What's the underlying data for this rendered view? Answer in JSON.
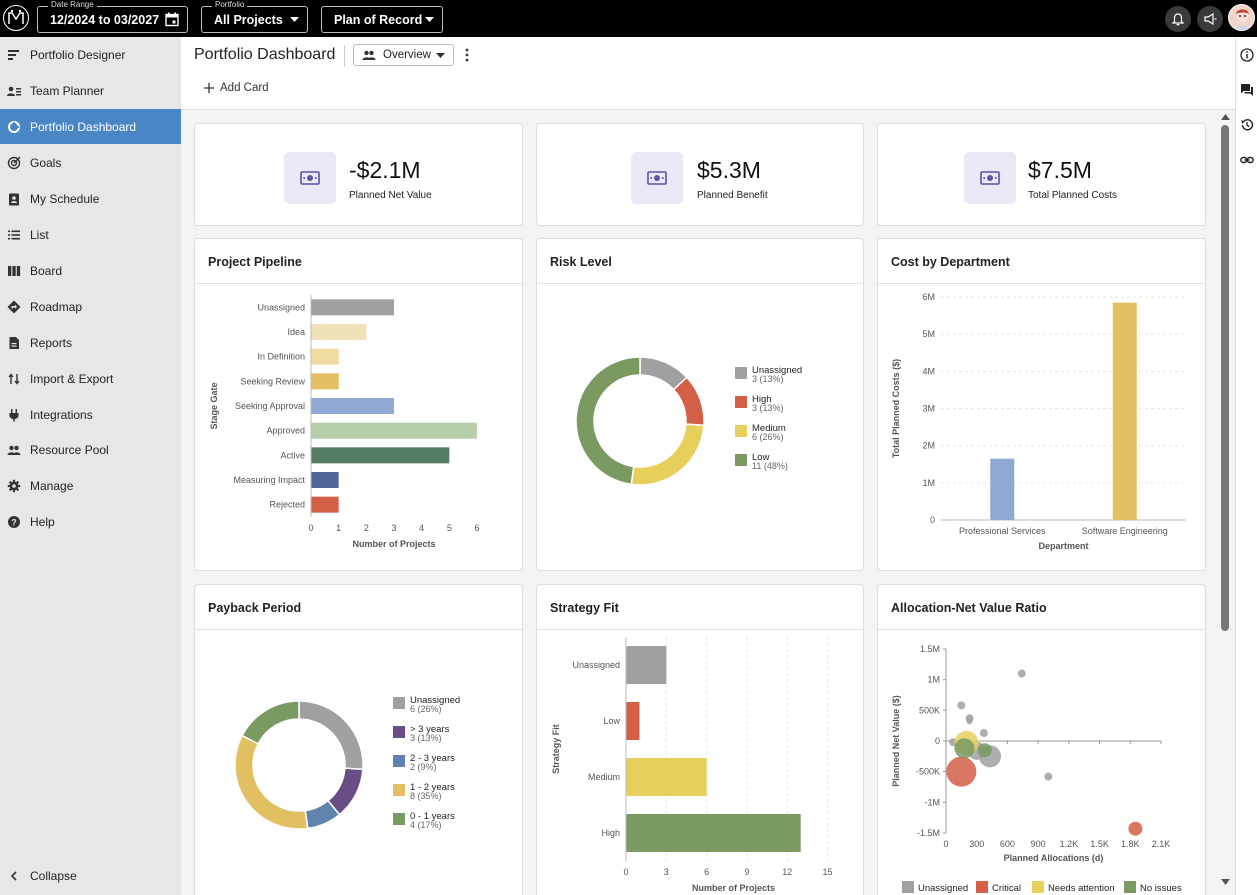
{
  "topbar": {
    "logo_text": "M",
    "date_range_label": "Date Range",
    "date_range_value": "12/2024 to 03/2027",
    "portfolio_label": "Portfolio",
    "portfolio_value": "All Projects",
    "plan_value": "Plan of Record"
  },
  "sidebar": {
    "items": [
      {
        "label": "Portfolio Designer",
        "icon": "designer-icon"
      },
      {
        "label": "Team Planner",
        "icon": "team-icon"
      },
      {
        "label": "Portfolio Dashboard",
        "icon": "dashboard-icon"
      },
      {
        "label": "Goals",
        "icon": "target-icon"
      },
      {
        "label": "My Schedule",
        "icon": "schedule-icon"
      },
      {
        "label": "List",
        "icon": "list-icon"
      },
      {
        "label": "Board",
        "icon": "board-icon"
      },
      {
        "label": "Roadmap",
        "icon": "roadmap-icon"
      },
      {
        "label": "Reports",
        "icon": "report-icon"
      },
      {
        "label": "Import & Export",
        "icon": "import-export-icon"
      },
      {
        "label": "Integrations",
        "icon": "plug-icon"
      },
      {
        "label": "Resource Pool",
        "icon": "people-icon"
      },
      {
        "label": "Manage",
        "icon": "gear-icon"
      },
      {
        "label": "Help",
        "icon": "help-icon"
      }
    ],
    "collapse_label": "Collapse"
  },
  "header": {
    "title": "Portfolio Dashboard",
    "view_label": "Overview",
    "add_card_label": "Add Card"
  },
  "colors": {
    "accent": "#4a86c5",
    "unassigned": "#a0a0a0",
    "high": "#d35f47",
    "medium": "#e6cf5a",
    "low": "#7a9a62"
  },
  "kpis": [
    {
      "value": "-$2.1M",
      "label": "Planned Net Value"
    },
    {
      "value": "$5.3M",
      "label": "Planned Benefit"
    },
    {
      "value": "$7.5M",
      "label": "Total Planned Costs"
    }
  ],
  "cards": {
    "pipeline_title": "Project Pipeline",
    "risk_title": "Risk Level",
    "cost_title": "Cost by Department",
    "payback_title": "Payback Period",
    "strategy_title": "Strategy Fit",
    "allocation_title": "Allocation-Net Value Ratio"
  },
  "chart_data": [
    {
      "id": "pipeline",
      "type": "bar",
      "orientation": "horizontal",
      "title": "Project Pipeline",
      "xlabel": "Number of Projects",
      "ylabel": "Stage Gate",
      "xlim": [
        0,
        6
      ],
      "xticks": [
        0,
        1,
        2,
        3,
        4,
        5,
        6
      ],
      "categories": [
        "Unassigned",
        "Idea",
        "In Definition",
        "Seeking Review",
        "Seeking Approval",
        "Approved",
        "Active",
        "Measuring Impact",
        "Rejected"
      ],
      "values": [
        3,
        2,
        1,
        1,
        3,
        6,
        5,
        1,
        1
      ],
      "colors": [
        "#a0a0a0",
        "#f0e2b8",
        "#f0dca2",
        "#e2bf60",
        "#8fa9d4",
        "#b6cfaa",
        "#557c66",
        "#4f6596",
        "#d35f47"
      ]
    },
    {
      "id": "risk",
      "type": "pie",
      "donut": true,
      "title": "Risk Level",
      "slices": [
        {
          "name": "Unassigned",
          "value": 3,
          "label": "3 (13%)",
          "color": "#a0a0a0"
        },
        {
          "name": "High",
          "value": 3,
          "label": "3 (13%)",
          "color": "#d35f47"
        },
        {
          "name": "Medium",
          "value": 6,
          "label": "6 (26%)",
          "color": "#e6cf5a"
        },
        {
          "name": "Low",
          "value": 11,
          "label": "11 (48%)",
          "color": "#7a9a62"
        }
      ]
    },
    {
      "id": "cost",
      "type": "bar",
      "title": "Cost by Department",
      "xlabel": "Department",
      "ylabel": "Total Planned Costs ($)",
      "ylim": [
        0,
        6000000
      ],
      "yticks": [
        0,
        1000000,
        2000000,
        3000000,
        4000000,
        5000000,
        6000000
      ],
      "ytick_labels": [
        "0",
        "1M",
        "2M",
        "3M",
        "4M",
        "5M",
        "6M"
      ],
      "categories": [
        "Professional Services",
        "Software Engineering"
      ],
      "values": [
        1650000,
        5850000
      ],
      "colors": [
        "#8fa9d4",
        "#e2bf60"
      ]
    },
    {
      "id": "payback",
      "type": "pie",
      "donut": true,
      "title": "Payback Period",
      "slices": [
        {
          "name": "Unassigned",
          "value": 6,
          "label": "6 (26%)",
          "color": "#a0a0a0"
        },
        {
          "name": "> 3 years",
          "value": 3,
          "label": "3 (13%)",
          "color": "#6b4d86"
        },
        {
          "name": "2 - 3 years",
          "value": 2,
          "label": "2 (9%)",
          "color": "#5f83ad"
        },
        {
          "name": "1 - 2 years",
          "value": 8,
          "label": "8 (35%)",
          "color": "#e2bf60"
        },
        {
          "name": "0 - 1 years",
          "value": 4,
          "label": "4 (17%)",
          "color": "#7a9a62"
        }
      ]
    },
    {
      "id": "strategy",
      "type": "bar",
      "orientation": "horizontal",
      "title": "Strategy Fit",
      "xlabel": "Number of Projects",
      "ylabel": "Strategy Fit",
      "xlim": [
        0,
        16
      ],
      "xticks": [
        0,
        3,
        6,
        9,
        12,
        15
      ],
      "categories": [
        "Unassigned",
        "Low",
        "Medium",
        "High"
      ],
      "values": [
        3,
        1,
        6,
        13
      ],
      "colors": [
        "#a0a0a0",
        "#d35f47",
        "#e6cf5a",
        "#7a9a62"
      ]
    },
    {
      "id": "allocation",
      "type": "scatter",
      "title": "Allocation-Net Value Ratio",
      "xlabel": "Planned Allocations (d)",
      "ylabel": "Planned Net Value ($)",
      "xlim": [
        0,
        2100
      ],
      "ylim": [
        -1500000,
        1500000
      ],
      "xticks": [
        0,
        300,
        600,
        900,
        1200,
        1500,
        1800,
        2100
      ],
      "xtick_labels": [
        "0",
        "300",
        "600",
        "900",
        "1.2K",
        "1.5K",
        "1.8K",
        "2.1K"
      ],
      "yticks": [
        -1500000,
        -1000000,
        -500000,
        0,
        500000,
        1000000,
        1500000
      ],
      "ytick_labels": [
        "-1.5M",
        "-1M",
        "-500K",
        "0",
        "500K",
        "1M",
        "1.5M"
      ],
      "legend": [
        {
          "name": "Unassigned",
          "color": "#a0a0a0"
        },
        {
          "name": "Critical",
          "color": "#d35f47"
        },
        {
          "name": "Needs attention",
          "color": "#e6cf5a"
        },
        {
          "name": "No issues",
          "color": "#7a9a62"
        }
      ],
      "points": [
        {
          "x": 740,
          "y": 1100000,
          "size": 4,
          "status": "Unassigned"
        },
        {
          "x": 150,
          "y": 580000,
          "size": 4,
          "status": "Unassigned"
        },
        {
          "x": 230,
          "y": 370000,
          "size": 4,
          "status": "Unassigned"
        },
        {
          "x": 230,
          "y": 320000,
          "size": 3,
          "status": "Unassigned"
        },
        {
          "x": 370,
          "y": 130000,
          "size": 4,
          "status": "Unassigned"
        },
        {
          "x": 1000,
          "y": -580000,
          "size": 4,
          "status": "Unassigned"
        },
        {
          "x": 430,
          "y": -250000,
          "size": 11,
          "status": "Unassigned"
        },
        {
          "x": 300,
          "y": -160000,
          "size": 9,
          "status": "Unassigned"
        },
        {
          "x": 70,
          "y": -20000,
          "size": 4,
          "status": "Unassigned"
        },
        {
          "x": 200,
          "y": -30000,
          "size": 12,
          "status": "Needs attention"
        },
        {
          "x": 150,
          "y": -500000,
          "size": 15,
          "status": "Critical"
        },
        {
          "x": 1850,
          "y": -1430000,
          "size": 7,
          "status": "Critical"
        },
        {
          "x": 180,
          "y": -120000,
          "size": 10,
          "status": "No issues"
        },
        {
          "x": 380,
          "y": -150000,
          "size": 7,
          "status": "No issues"
        }
      ]
    }
  ]
}
